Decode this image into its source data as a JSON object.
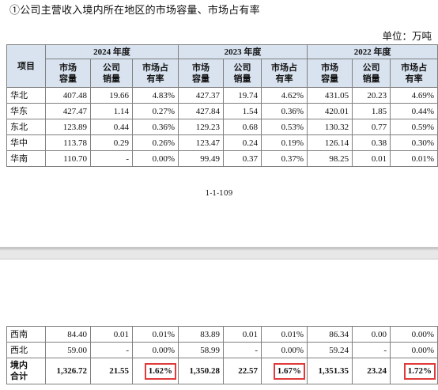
{
  "heading": "①公司主营收入境内所在地区的市场容量、市场占有率",
  "unit": "单位：万吨",
  "table": {
    "header_item": "项目",
    "years": [
      "2024 年度",
      "2023 年度",
      "2022 年度"
    ],
    "subcols": [
      "市场\n容量",
      "公司\n销量",
      "市场占\n有率"
    ],
    "rows_top": [
      {
        "region": "华北",
        "v": [
          "407.48",
          "19.66",
          "4.83%",
          "427.37",
          "19.74",
          "4.62%",
          "431.05",
          "20.23",
          "4.69%"
        ]
      },
      {
        "region": "华东",
        "v": [
          "427.47",
          "1.14",
          "0.27%",
          "427.84",
          "1.54",
          "0.36%",
          "420.01",
          "1.85",
          "0.44%"
        ]
      },
      {
        "region": "东北",
        "v": [
          "123.89",
          "0.44",
          "0.36%",
          "129.23",
          "0.68",
          "0.53%",
          "130.32",
          "0.77",
          "0.59%"
        ]
      },
      {
        "region": "华中",
        "v": [
          "113.78",
          "0.29",
          "0.26%",
          "123.47",
          "0.24",
          "0.19%",
          "126.14",
          "0.38",
          "0.30%"
        ]
      },
      {
        "region": "华南",
        "v": [
          "110.70",
          "-",
          "0.00%",
          "99.49",
          "0.37",
          "0.37%",
          "98.25",
          "0.01",
          "0.01%"
        ]
      }
    ],
    "rows_bottom": [
      {
        "region": "西南",
        "v": [
          "84.40",
          "0.01",
          "0.01%",
          "83.89",
          "0.01",
          "0.01%",
          "86.34",
          "0.00",
          "0.00%"
        ]
      },
      {
        "region": "西北",
        "v": [
          "59.00",
          "-",
          "0.00%",
          "58.99",
          "-",
          "0.00%",
          "59.24",
          "-",
          "0.00%"
        ]
      }
    ],
    "total": {
      "region": "境内\n合计",
      "v": [
        "1,326.72",
        "21.55",
        "1.62%",
        "1,350.28",
        "22.57",
        "1.67%",
        "1,351.35",
        "23.24",
        "1.72%"
      ]
    }
  },
  "page_number": "1-1-109",
  "highlight_color": "#e03a3a",
  "header_bg": "#d9e3f0"
}
